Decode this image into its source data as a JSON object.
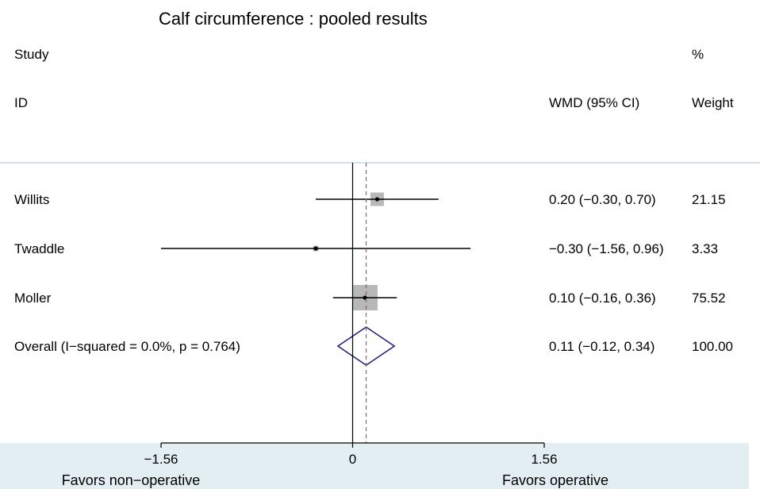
{
  "colors": {
    "background": "#ffffff",
    "axis_band": "#e2eef2",
    "ci_line": "#000000",
    "weight_box": "#b8b8b8",
    "diamond": "#1c1c74",
    "overall_line": "#c0504d",
    "separator": "#b0c4cc"
  },
  "chart_data": {
    "type": "forest",
    "title": "Calf circumference : pooled results",
    "columns": {
      "study_header_1": "Study",
      "study_header_2": "ID",
      "effect_header": "WMD (95% CI)",
      "weight_header_1": "%",
      "weight_header_2": "Weight"
    },
    "studies": [
      {
        "label": "Willits",
        "est": 0.2,
        "lo": -0.3,
        "hi": 0.7,
        "ci_text": "0.20 (−0.30, 0.70)",
        "weight": 21.15,
        "weight_text": "21.15"
      },
      {
        "label": "Twaddle",
        "est": -0.3,
        "lo": -1.56,
        "hi": 0.96,
        "ci_text": "−0.30 (−1.56, 0.96)",
        "weight": 3.33,
        "weight_text": "3.33"
      },
      {
        "label": "Moller",
        "est": 0.1,
        "lo": -0.16,
        "hi": 0.36,
        "ci_text": "0.10 (−0.16, 0.36)",
        "weight": 75.52,
        "weight_text": "75.52"
      }
    ],
    "overall": {
      "label": "Overall  (I−squared = 0.0%, p = 0.764)",
      "est": 0.11,
      "lo": -0.12,
      "hi": 0.34,
      "ci_text": "0.11 (−0.12, 0.34)",
      "weight_text": "100.00"
    },
    "xaxis": {
      "ticks": [
        -1.56,
        0,
        1.56
      ],
      "tick_labels": [
        "−1.56",
        "0",
        "1.56"
      ],
      "xlim": [
        -1.56,
        1.56
      ],
      "null_line": 0,
      "left_label": "Favors non−operative",
      "right_label": "Favors operative"
    }
  }
}
